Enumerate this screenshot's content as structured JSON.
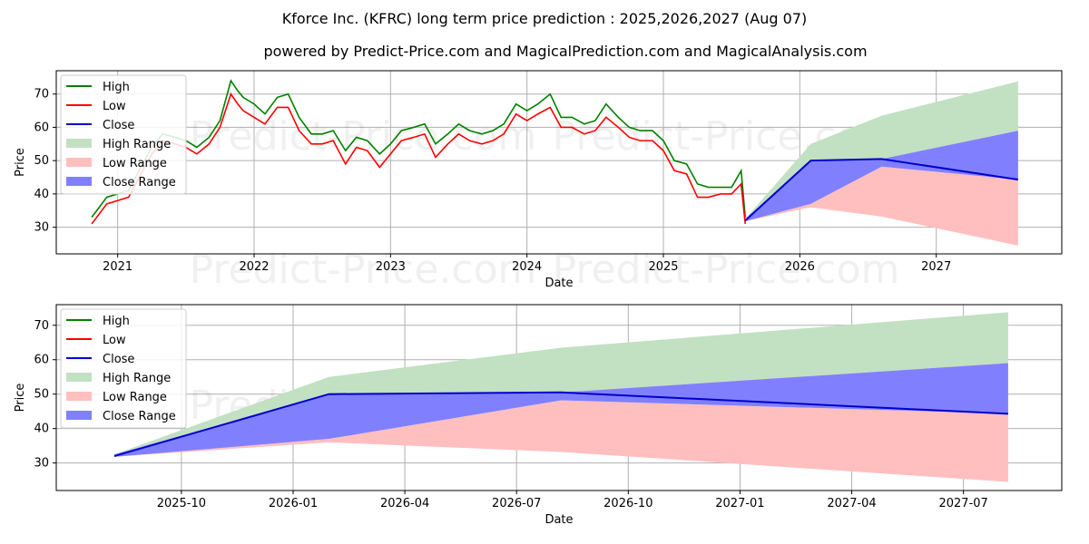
{
  "title": "Kforce Inc. (KFRC) long term price prediction : 2025,2026,2027 (Aug 07)",
  "subtitle": "powered by Predict-Price.com and MagicalPrediction.com and MagicalAnalysis.com",
  "watermark": "Predict-Price.com",
  "colors": {
    "high": "#008000",
    "low": "#ff0000",
    "close": "#0000cc",
    "high_range": "#c2e0c2",
    "low_range": "#ffbfbf",
    "close_range": "#8080ff"
  },
  "legend": [
    "High",
    "Low",
    "Close",
    "High Range",
    "Low Range",
    "Close Range"
  ],
  "chart_data": [
    {
      "type": "line",
      "xlabel": "Date",
      "ylabel": "Price",
      "xlim": [
        2020.55,
        2027.92
      ],
      "ylim": [
        22,
        77
      ],
      "xticks": [
        {
          "v": 2021,
          "label": "2021"
        },
        {
          "v": 2022,
          "label": "2022"
        },
        {
          "v": 2023,
          "label": "2023"
        },
        {
          "v": 2024,
          "label": "2024"
        },
        {
          "v": 2025,
          "label": "2025"
        },
        {
          "v": 2026,
          "label": "2026"
        },
        {
          "v": 2027,
          "label": "2027"
        }
      ],
      "yticks": [
        30,
        40,
        50,
        60,
        70
      ],
      "grid": true,
      "legend_position": "top-left",
      "history": {
        "x": [
          2020.81,
          2020.92,
          2021.0,
          2021.08,
          2021.17,
          2021.25,
          2021.33,
          2021.42,
          2021.5,
          2021.58,
          2021.67,
          2021.75,
          2021.83,
          2021.88,
          2021.92,
          2022.0,
          2022.08,
          2022.17,
          2022.25,
          2022.33,
          2022.42,
          2022.5,
          2022.58,
          2022.67,
          2022.75,
          2022.83,
          2022.92,
          2023.0,
          2023.08,
          2023.17,
          2023.25,
          2023.33,
          2023.42,
          2023.5,
          2023.58,
          2023.67,
          2023.75,
          2023.83,
          2023.92,
          2024.0,
          2024.08,
          2024.17,
          2024.25,
          2024.33,
          2024.42,
          2024.5,
          2024.58,
          2024.67,
          2024.75,
          2024.83,
          2024.92,
          2025.0,
          2025.08,
          2025.17,
          2025.25,
          2025.33,
          2025.42,
          2025.5,
          2025.57,
          2025.6
        ],
        "high": [
          33,
          39,
          40,
          41,
          48,
          54,
          58,
          57,
          56,
          54,
          57,
          62,
          74,
          71,
          69,
          67,
          64,
          69,
          70,
          63,
          58,
          58,
          59,
          53,
          57,
          56,
          52,
          55,
          59,
          60,
          61,
          55,
          58,
          61,
          59,
          58,
          59,
          61,
          67,
          65,
          67,
          70,
          63,
          63,
          61,
          62,
          67,
          63,
          60,
          59,
          59,
          56,
          50,
          49,
          43,
          42,
          42,
          42,
          47,
          33
        ],
        "low": [
          31,
          37,
          38,
          39,
          46,
          52,
          56,
          55,
          54,
          52,
          55,
          60,
          70,
          67,
          65,
          63,
          61,
          66,
          66,
          59,
          55,
          55,
          56,
          49,
          54,
          53,
          48,
          52,
          56,
          57,
          58,
          51,
          55,
          58,
          56,
          55,
          56,
          58,
          64,
          62,
          64,
          66,
          60,
          60,
          58,
          59,
          63,
          60,
          57,
          56,
          56,
          53,
          47,
          46,
          39,
          39,
          40,
          40,
          43,
          31
        ]
      },
      "forecast": {
        "x": [
          2025.6,
          2026.08,
          2026.6,
          2027.6
        ],
        "close": [
          32,
          50,
          50.5,
          44.3
        ],
        "high_range": [
          [
            32.5,
            32.5
          ],
          [
            50,
            55
          ],
          [
            50.5,
            63.5
          ],
          [
            59,
            73.8
          ]
        ],
        "low_range": [
          [
            31.8,
            32
          ],
          [
            36,
            37
          ],
          [
            33.2,
            48.2
          ],
          [
            24.5,
            44.3
          ]
        ],
        "close_range": [
          [
            31.8,
            32.5
          ],
          [
            37,
            50
          ],
          [
            48.2,
            50.5
          ],
          [
            44.3,
            59
          ]
        ]
      }
    },
    {
      "type": "line",
      "xlabel": "Date",
      "ylabel": "Price",
      "xlim": [
        2025.47,
        2027.72
      ],
      "ylim": [
        22,
        76
      ],
      "xticks": [
        {
          "v": 2025.75,
          "label": "2025-10"
        },
        {
          "v": 2026.0,
          "label": "2026-01"
        },
        {
          "v": 2026.25,
          "label": "2026-04"
        },
        {
          "v": 2026.5,
          "label": "2026-07"
        },
        {
          "v": 2026.75,
          "label": "2026-10"
        },
        {
          "v": 2027.0,
          "label": "2027-01"
        },
        {
          "v": 2027.25,
          "label": "2027-04"
        },
        {
          "v": 2027.5,
          "label": "2027-07"
        }
      ],
      "yticks": [
        30,
        40,
        50,
        60,
        70
      ],
      "grid": true,
      "legend_position": "top-left",
      "forecast": {
        "x": [
          2025.6,
          2026.08,
          2026.6,
          2027.6
        ],
        "close": [
          32,
          50,
          50.5,
          44.3
        ],
        "high_range": [
          [
            32.5,
            32.5
          ],
          [
            50,
            55
          ],
          [
            50.5,
            63.5
          ],
          [
            59,
            73.8
          ]
        ],
        "low_range": [
          [
            31.8,
            32
          ],
          [
            36,
            37
          ],
          [
            33.2,
            48.2
          ],
          [
            24.5,
            44.3
          ]
        ],
        "close_range": [
          [
            31.8,
            32.5
          ],
          [
            37,
            50
          ],
          [
            48.2,
            50.5
          ],
          [
            44.3,
            59
          ]
        ]
      }
    }
  ]
}
